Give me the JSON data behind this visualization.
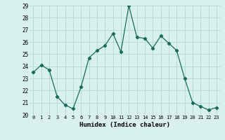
{
  "x": [
    0,
    1,
    2,
    3,
    4,
    5,
    6,
    7,
    8,
    9,
    10,
    11,
    12,
    13,
    14,
    15,
    16,
    17,
    18,
    19,
    20,
    21,
    22,
    23
  ],
  "y": [
    23.5,
    24.1,
    23.7,
    21.5,
    20.8,
    20.5,
    22.3,
    24.7,
    25.3,
    25.7,
    26.7,
    25.2,
    29.0,
    26.4,
    26.3,
    25.5,
    26.5,
    25.9,
    25.3,
    23.0,
    21.0,
    20.7,
    20.4,
    20.6
  ],
  "xlabel": "Humidex (Indice chaleur)",
  "xlim": [
    -0.5,
    23.5
  ],
  "ylim": [
    20,
    29
  ],
  "yticks": [
    20,
    21,
    22,
    23,
    24,
    25,
    26,
    27,
    28,
    29
  ],
  "xticks": [
    0,
    1,
    2,
    3,
    4,
    5,
    6,
    7,
    8,
    9,
    10,
    11,
    12,
    13,
    14,
    15,
    16,
    17,
    18,
    19,
    20,
    21,
    22,
    23
  ],
  "line_color": "#1a6b5a",
  "marker": "D",
  "marker_size": 2.2,
  "bg_color": "#d8f0ee",
  "grid_color": "#b0d8d4"
}
